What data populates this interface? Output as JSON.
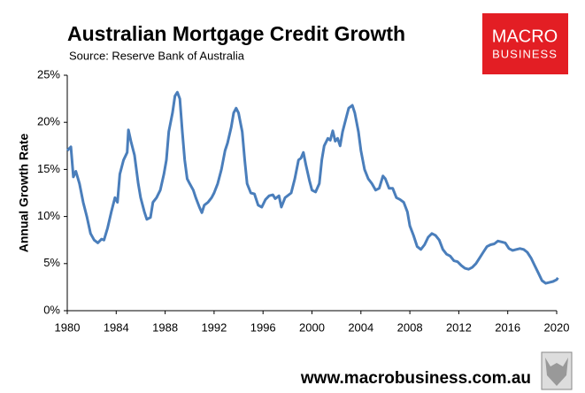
{
  "chart_data": {
    "type": "line",
    "title": "Australian Mortgage Credit Growth",
    "subtitle": "Source: Reserve Bank of Australia",
    "y_label": "Annual Growth Rate",
    "logo": [
      "MACRO",
      "BUSINESS"
    ],
    "footer": "www.macrobusiness.com.au",
    "color": "#4a7ebb",
    "x": [
      1980.0,
      1980.3,
      1980.5,
      1980.7,
      1981.0,
      1981.3,
      1981.6,
      1981.9,
      1982.2,
      1982.5,
      1982.8,
      1983.0,
      1983.3,
      1983.6,
      1983.9,
      1984.1,
      1984.3,
      1984.6,
      1984.9,
      1985.0,
      1985.2,
      1985.5,
      1985.8,
      1986.0,
      1986.3,
      1986.5,
      1986.8,
      1987.0,
      1987.3,
      1987.6,
      1987.9,
      1988.1,
      1988.3,
      1988.6,
      1988.8,
      1989.0,
      1989.2,
      1989.4,
      1989.6,
      1989.8,
      1990.0,
      1990.3,
      1990.5,
      1990.8,
      1991.0,
      1991.2,
      1991.5,
      1991.8,
      1992.0,
      1992.3,
      1992.6,
      1992.9,
      1993.1,
      1993.4,
      1993.6,
      1993.8,
      1994.0,
      1994.3,
      1994.5,
      1994.7,
      1995.0,
      1995.3,
      1995.6,
      1995.9,
      1996.2,
      1996.5,
      1996.8,
      1997.0,
      1997.3,
      1997.5,
      1997.8,
      1998.0,
      1998.3,
      1998.6,
      1998.9,
      1999.1,
      1999.3,
      1999.5,
      1999.8,
      2000.0,
      2000.3,
      2000.6,
      2000.8,
      2001.0,
      2001.3,
      2001.5,
      2001.7,
      2001.9,
      2002.1,
      2002.3,
      2002.5,
      2002.8,
      2003.0,
      2003.3,
      2003.5,
      2003.8,
      2004.0,
      2004.3,
      2004.6,
      2004.9,
      2005.2,
      2005.5,
      2005.8,
      2006.0,
      2006.3,
      2006.6,
      2006.9,
      2007.2,
      2007.5,
      2007.8,
      2008.0,
      2008.3,
      2008.6,
      2008.9,
      2009.2,
      2009.5,
      2009.8,
      2010.1,
      2010.4,
      2010.7,
      2011.0,
      2011.3,
      2011.6,
      2011.9,
      2012.2,
      2012.5,
      2012.8,
      2013.1,
      2013.4,
      2013.7,
      2014.0,
      2014.3,
      2014.6,
      2014.9,
      2015.2,
      2015.5,
      2015.8,
      2016.1,
      2016.4,
      2016.7,
      2017.0,
      2017.3,
      2017.6,
      2017.9,
      2018.2,
      2018.5,
      2018.8,
      2019.1,
      2019.4,
      2019.7,
      2020.0,
      2020.1
    ],
    "values": [
      17.0,
      17.4,
      14.2,
      14.8,
      13.5,
      11.5,
      10.0,
      8.2,
      7.5,
      7.2,
      7.6,
      7.5,
      8.8,
      10.5,
      12.0,
      11.5,
      14.5,
      16.0,
      16.8,
      19.2,
      18.0,
      16.5,
      13.5,
      12.0,
      10.5,
      9.7,
      9.9,
      11.5,
      12.0,
      12.8,
      14.5,
      16.0,
      19.0,
      21.0,
      22.8,
      23.2,
      22.5,
      19.0,
      16.0,
      14.0,
      13.5,
      12.8,
      12.0,
      11.0,
      10.4,
      11.2,
      11.5,
      12.0,
      12.5,
      13.5,
      15.0,
      17.0,
      17.8,
      19.5,
      21.0,
      21.5,
      21.0,
      19.0,
      16.0,
      13.5,
      12.5,
      12.4,
      11.2,
      11.0,
      11.8,
      12.2,
      12.3,
      11.9,
      12.2,
      11.0,
      12.0,
      12.2,
      12.5,
      14.0,
      16.0,
      16.2,
      16.8,
      15.5,
      13.8,
      12.8,
      12.6,
      13.5,
      16.0,
      17.5,
      18.3,
      18.1,
      19.1,
      18.0,
      18.3,
      17.5,
      19.0,
      20.5,
      21.5,
      21.8,
      21.0,
      19.0,
      17.0,
      15.0,
      14.0,
      13.5,
      12.8,
      13.0,
      14.3,
      14.0,
      13.0,
      13.0,
      12.0,
      11.8,
      11.5,
      10.5,
      9.0,
      8.0,
      6.8,
      6.5,
      7.0,
      7.8,
      8.2,
      8.0,
      7.5,
      6.5,
      6.0,
      5.8,
      5.3,
      5.2,
      4.8,
      4.5,
      4.4,
      4.6,
      5.0,
      5.6,
      6.2,
      6.8,
      7.0,
      7.1,
      7.4,
      7.3,
      7.2,
      6.6,
      6.4,
      6.5,
      6.6,
      6.5,
      6.2,
      5.6,
      4.8,
      4.0,
      3.2,
      2.9,
      3.0,
      3.1,
      3.3,
      3.5
    ],
    "xlim": [
      1980,
      2020
    ],
    "xticks": [
      1980,
      1984,
      1988,
      1992,
      1996,
      2000,
      2004,
      2008,
      2012,
      2016,
      2020
    ],
    "ylim": [
      0,
      25
    ],
    "yticks": [
      {
        "value": 0,
        "label": "0%"
      },
      {
        "value": 5,
        "label": "5%"
      },
      {
        "value": 10,
        "label": "10%"
      },
      {
        "value": 15,
        "label": "15%"
      },
      {
        "value": 20,
        "label": "20%"
      },
      {
        "value": 25,
        "label": "25%"
      }
    ],
    "grid": false
  }
}
